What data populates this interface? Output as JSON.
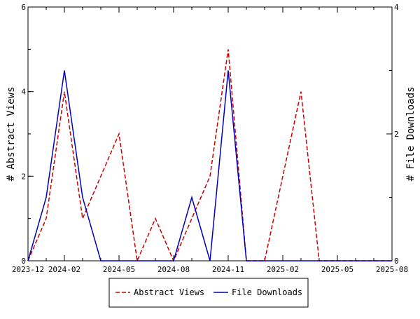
{
  "chart_data": {
    "type": "line",
    "x": [
      "2023-12",
      "2024-01",
      "2024-02",
      "2024-03",
      "2024-04",
      "2024-05",
      "2024-06",
      "2024-07",
      "2024-08",
      "2024-09",
      "2024-10",
      "2024-11",
      "2024-12",
      "2025-01",
      "2025-02",
      "2025-03",
      "2025-04",
      "2025-05",
      "2025-06",
      "2025-07",
      "2025-08"
    ],
    "series": [
      {
        "name": "Abstract Views",
        "axis": "left",
        "style": "dashed",
        "color": "#cc0000",
        "values": [
          0,
          1,
          4,
          1,
          2,
          3,
          0,
          1,
          0,
          1,
          2,
          5,
          0,
          0,
          2,
          4,
          0,
          0,
          0,
          0,
          0
        ]
      },
      {
        "name": "File Downloads",
        "axis": "right",
        "style": "solid",
        "color": "#0000bb",
        "values": [
          0,
          1,
          3,
          1,
          0,
          0,
          0,
          0,
          0,
          1,
          0,
          3,
          0,
          0,
          0,
          0,
          0,
          0,
          0,
          0,
          0
        ]
      }
    ],
    "xlabel": "",
    "ylabel": "# Abstract Views",
    "y2label": "# File Downloads",
    "ylim": [
      0,
      6
    ],
    "y2lim": [
      0,
      4
    ],
    "yticks": [
      "0",
      "2",
      "4",
      "6"
    ],
    "y2ticks": [
      "0",
      "2",
      "4"
    ],
    "xticks": [
      "2023-12",
      "2024-02",
      "2024-05",
      "2024-08",
      "2024-11",
      "2025-02",
      "2025-05",
      "2025-08"
    ],
    "grid": false,
    "legend_placement": "bottom"
  }
}
